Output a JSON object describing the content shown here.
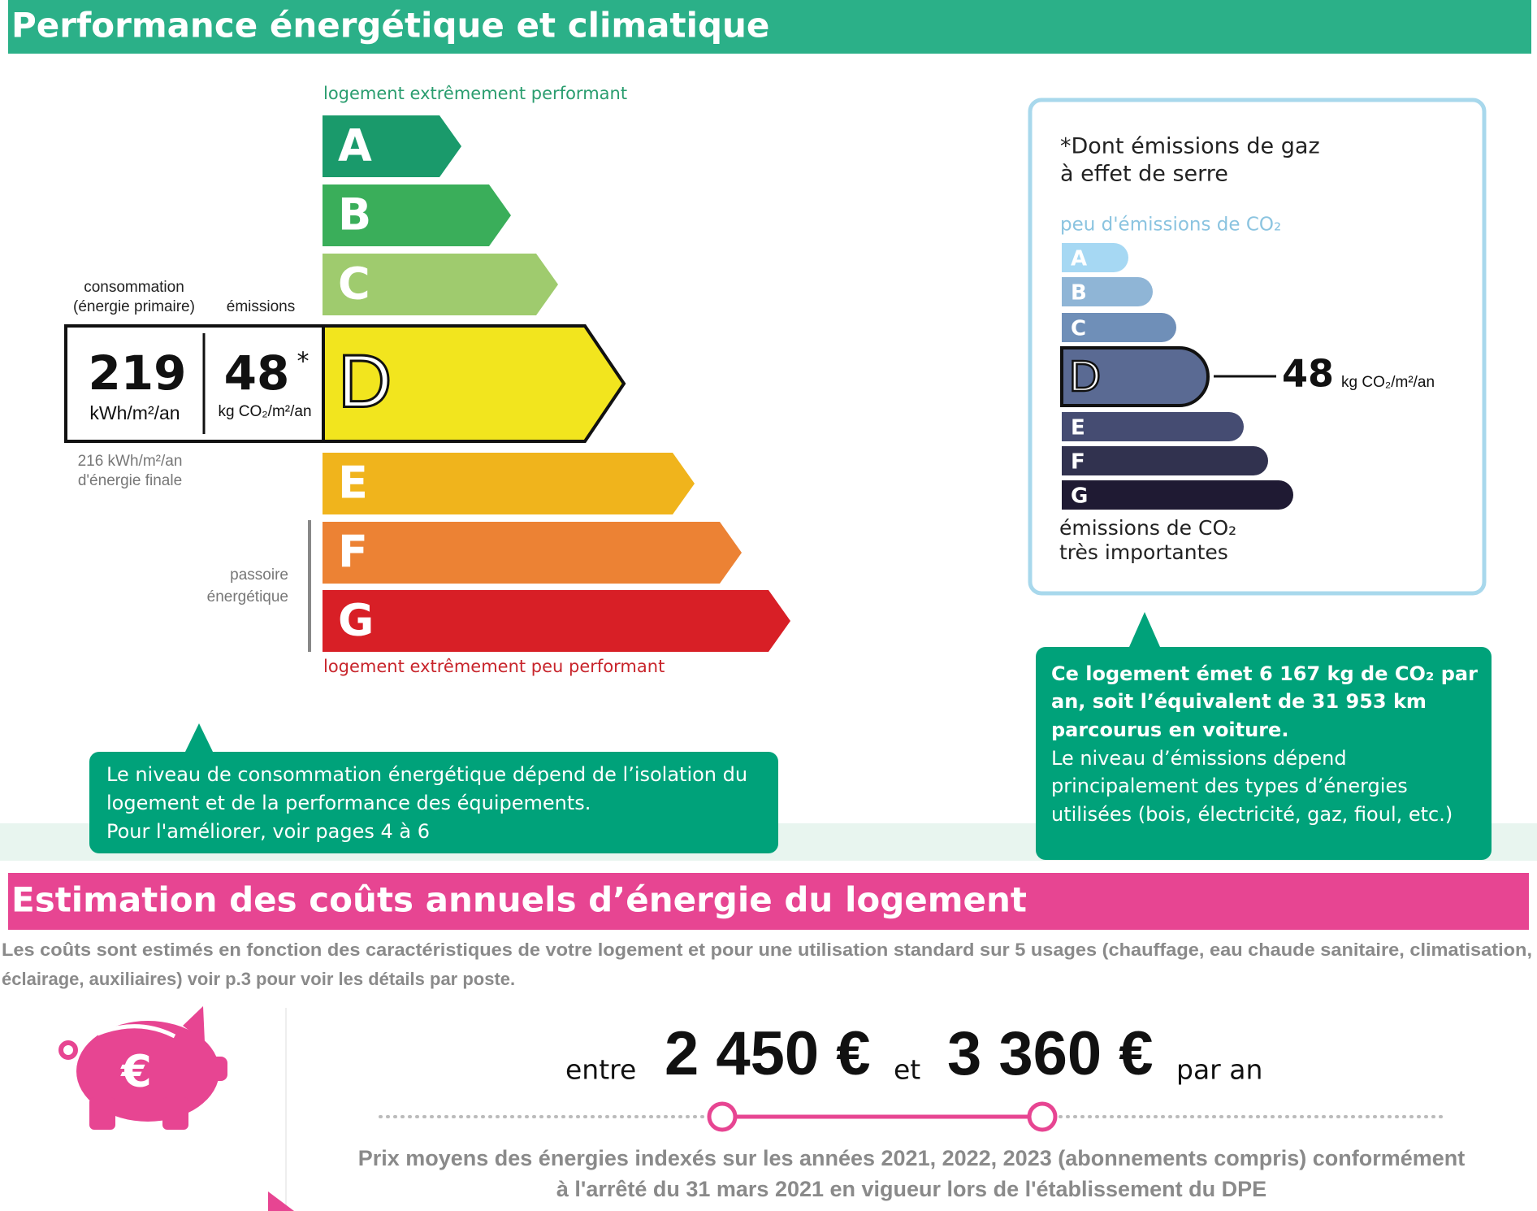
{
  "energy": {
    "title": "Performance énergétique et climatique",
    "top_label": "logement extrêmement performant",
    "bottom_label": "logement extrêmement peu performant",
    "classes": [
      "A",
      "B",
      "C",
      "D",
      "E",
      "F",
      "G"
    ],
    "consumption_label": [
      "consommation",
      "(énergie primaire)"
    ],
    "emissions_label": "émissions",
    "consumption_value": "219",
    "consumption_unit": "kWh/m²/an",
    "emissions_value": "48",
    "emissions_asterisk": "*",
    "emissions_unit": "kg CO₂/m²/an",
    "final_energy": [
      "216 kWh/m²/an",
      "d'énergie finale"
    ],
    "passoire": [
      "passoire",
      "énergétique"
    ],
    "callout": [
      "Le niveau de consommation énergétique dépend de l’isolation du",
      "logement et de la performance des équipements.",
      "Pour l'améliorer, voir pages 4 à 6"
    ]
  },
  "ghg": {
    "title": [
      "*Dont émissions de gaz",
      "à effet de serre"
    ],
    "top_label": "peu d'émissions de CO₂",
    "classes": [
      "A",
      "B",
      "C",
      "D",
      "E",
      "F",
      "G"
    ],
    "value": "48",
    "unit": "kg CO₂/m²/an",
    "bottom_label": [
      "émissions de CO₂",
      "très importantes"
    ],
    "callout_bold": [
      "Ce logement émet 6 167 kg de CO₂ par",
      "an, soit l’équivalent de 31 953 km",
      "parcourus en voiture."
    ],
    "callout": [
      "Le niveau d’émissions dépend",
      "principalement des types d’énergies",
      "utilisées (bois, électricité, gaz, fioul, etc.)"
    ]
  },
  "costs": {
    "title": "Estimation des coûts annuels d’énergie du logement",
    "description": [
      "Les coûts sont estimés en fonction des caractéristiques de votre logement et pour une utilisation standard sur 5 usages (chauffage, eau chaude sanitaire, climatisation,",
      "éclairage, auxiliaires) voir p.3 pour voir les détails par poste."
    ],
    "icon_symbol": "€",
    "between": "entre",
    "low": "2 450 €",
    "and": "et",
    "high": "3 360 €",
    "per_year": "par an",
    "note": [
      "Prix moyens des énergies indexés sur les années 2021, 2022, 2023 (abonnements compris) conformément",
      "à l'arrêté du 31 mars 2021 en vigueur lors de l'établissement du DPE"
    ]
  }
}
